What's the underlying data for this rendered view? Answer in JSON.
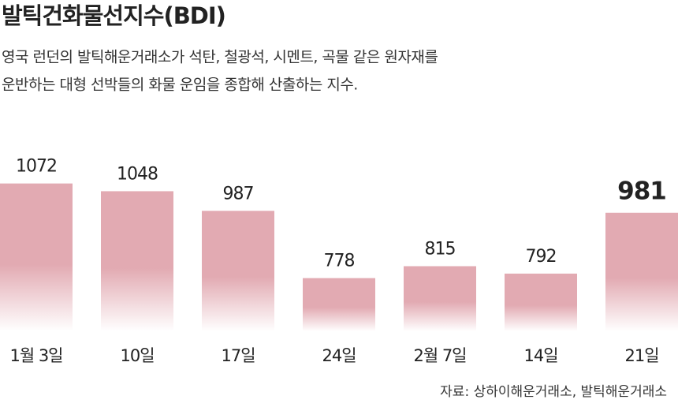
{
  "chart_data": {
    "type": "bar",
    "title": "발틱건화물선지수(BDI)",
    "subtitle": [
      "영국 런던의 발틱해운거래소가 석탄, 철광석, 시멘트, 곡물 같은 원자재를",
      "운반하는 대형 선박들의 화물 운임을 종합해 산출하는 지수."
    ],
    "categories": [
      "1월 3일",
      "10일",
      "17일",
      "24일",
      "2월 7일",
      "14일",
      "21일"
    ],
    "values": [
      1072,
      1048,
      987,
      778,
      815,
      792,
      981
    ],
    "color": "#e2aab2",
    "source": "자료: 상하이해운거래소, 발틱해운거래소"
  }
}
